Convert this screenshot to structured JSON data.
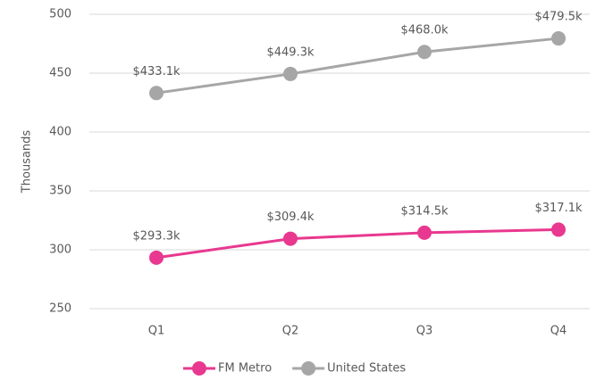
{
  "chart_data": {
    "type": "line",
    "y_label": "Thousands",
    "categories": [
      "Q1",
      "Q2",
      "Q3",
      "Q4"
    ],
    "series": [
      {
        "name": "FM Metro",
        "color": "#e8388f",
        "values": [
          293.3,
          309.4,
          314.5,
          317.1
        ],
        "value_labels": [
          "$293.3k",
          "$309.4k",
          "$314.5k",
          "$317.1k"
        ]
      },
      {
        "name": "United States",
        "color": "#a6a6a6",
        "values": [
          433.1,
          449.3,
          468.0,
          479.5
        ],
        "value_labels": [
          "$433.1k",
          "$449.3k",
          "$468.0k",
          "$479.5k"
        ]
      }
    ],
    "ylim": [
      250,
      500
    ],
    "yticks": [
      250,
      300,
      350,
      400,
      450,
      500
    ],
    "grid": true,
    "legend": "bottom"
  }
}
